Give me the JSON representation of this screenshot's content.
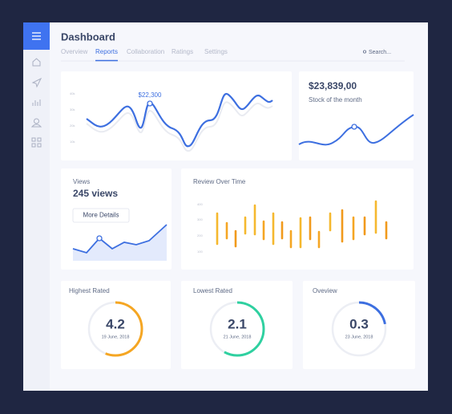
{
  "header": {
    "title": "Dashboard",
    "tabs": [
      "Overview",
      "Reports",
      "Collaboration",
      "Ratings",
      "Settings"
    ],
    "search": "Search..."
  },
  "main_chart": {
    "annotation": "$22,300",
    "ticks": [
      "40k",
      "30k",
      "20k",
      "10k"
    ]
  },
  "stock": {
    "value": "$23,839,00",
    "caption": "Stock of the month"
  },
  "views": {
    "label": "Views",
    "value": "245 views",
    "button": "More Details"
  },
  "review": {
    "title": "Review Over Time",
    "ticks": [
      "400",
      "300",
      "200",
      "100"
    ]
  },
  "ratings": [
    {
      "title": "Highest Rated",
      "value": "4.2",
      "date": "19 June, 2018"
    },
    {
      "title": "Lowest Rated",
      "value": "2.1",
      "date": "21 June, 2018"
    },
    {
      "title": "Oveview",
      "value": "0.3",
      "date": "23 June, 2018"
    }
  ]
}
